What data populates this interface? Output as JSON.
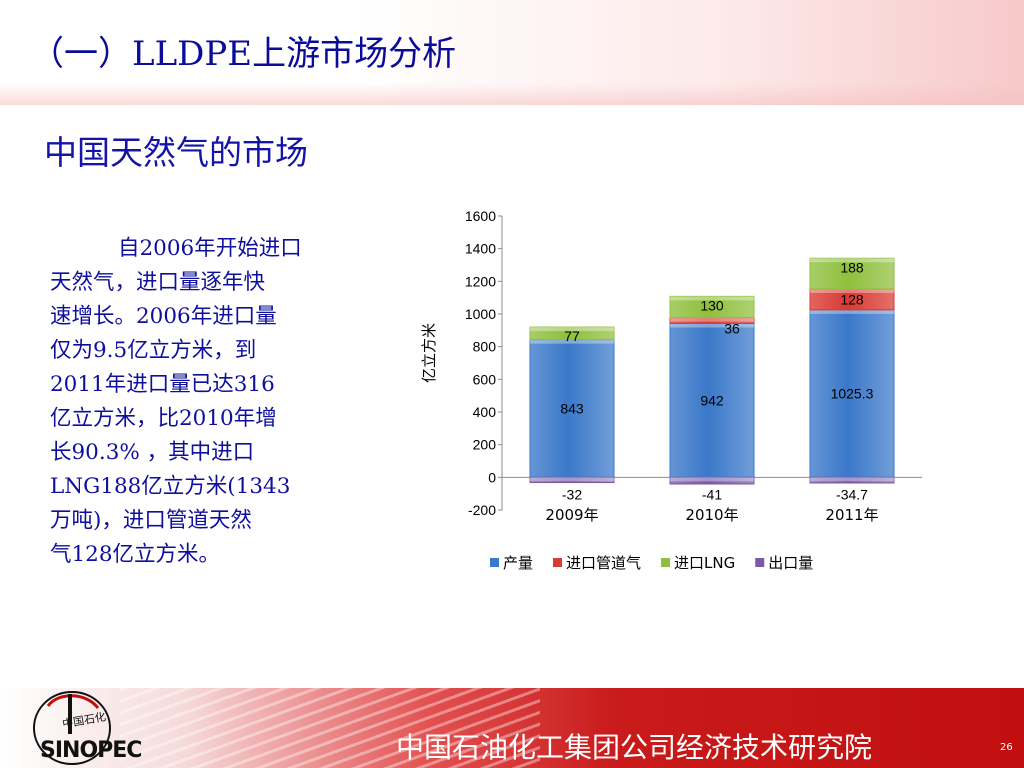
{
  "slide": {
    "title": "（一）LLDPE上游市场分析",
    "subtitle": "中国天然气的市场",
    "body_lines": [
      "自2006年开始进口",
      "天然气，进口量逐年快",
      "速增长。2006年进口量",
      "仅为9.5亿立方米，到",
      "2011年进口量已达316",
      "亿立方米，比2010年增",
      "长90.3% ，其中进口",
      "LNG188亿立方米(1343",
      "万吨)，进口管道天然",
      "气128亿立方米。"
    ],
    "footer_org": "中国石油化工集团公司经济技术研究院",
    "page_number": "26",
    "logo_text": "SINOPEC",
    "logo_sub": "中国石化"
  },
  "colors": {
    "title": "#0b0b9a",
    "body": "#0f0f9e",
    "footer": "#c10e0e",
    "series": [
      "#3a78c9",
      "#d93a32",
      "#8fbf3c",
      "#7a5aa8"
    ]
  },
  "chart_data": {
    "type": "bar",
    "stacked": true,
    "categories": [
      "2009年",
      "2010年",
      "2011年"
    ],
    "series": [
      {
        "name": "产量",
        "values": [
          843,
          942,
          1025.3
        ]
      },
      {
        "name": "进口管道气",
        "values": [
          0,
          36,
          128
        ]
      },
      {
        "name": "进口LNG",
        "values": [
          77,
          130,
          188
        ]
      },
      {
        "name": "出口量",
        "values": [
          -32,
          -41,
          -34.7
        ]
      }
    ],
    "data_labels": [
      [
        "843",
        "942",
        "1025.3"
      ],
      [
        "",
        "36",
        "128"
      ],
      [
        "77",
        "130",
        "188"
      ],
      [
        "-32",
        "-41",
        "-34.7"
      ]
    ],
    "ylabel": "亿立方米",
    "ylim": [
      -200,
      1600
    ],
    "yticks": [
      -200,
      0,
      200,
      400,
      600,
      800,
      1000,
      1200,
      1400,
      1600
    ],
    "legend_position": "bottom",
    "grid": false
  }
}
